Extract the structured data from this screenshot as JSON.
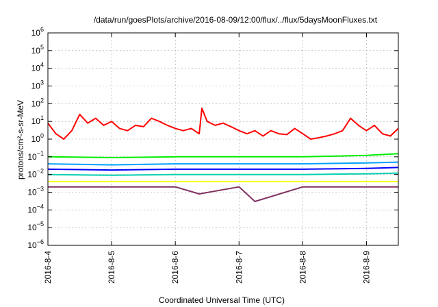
{
  "chart_data": {
    "type": "line",
    "title": "/data/run/goesPlots/archive/2016-08-09/12:00/flux/../flux/5daysMoonFluxes.txt",
    "xlabel": "Coordinated Universal Time (UTC)",
    "ylabel": "protons/cm²-s-sr-MeV",
    "y_scale": "log",
    "ylim": [
      1e-06,
      1000000.0
    ],
    "xlim": [
      "2016-08-04 00:00",
      "2016-08-09 12:00"
    ],
    "x_ticks": [
      "2016-8-4",
      "2016-8-5",
      "2016-8-6",
      "2016-8-7",
      "2016-8-8",
      "2016-8-9"
    ],
    "y_ticks": [
      1e-06,
      1e-05,
      0.0001,
      0.001,
      0.01,
      0.1,
      1.0,
      10.0,
      100.0,
      1000.0,
      10000.0,
      100000.0,
      1000000.0
    ],
    "grid": true,
    "legend": "none",
    "series": [
      {
        "color": "#ff0000",
        "x": [
          "2016-08-04 00:00",
          "2016-08-04 03:00",
          "2016-08-04 06:00",
          "2016-08-04 09:00",
          "2016-08-04 12:00",
          "2016-08-04 15:00",
          "2016-08-04 18:00",
          "2016-08-04 21:00",
          "2016-08-05 00:00",
          "2016-08-05 03:00",
          "2016-08-05 06:00",
          "2016-08-05 09:00",
          "2016-08-05 12:00",
          "2016-08-05 15:00",
          "2016-08-05 18:00",
          "2016-08-05 21:00",
          "2016-08-06 00:00",
          "2016-08-06 03:00",
          "2016-08-06 06:00",
          "2016-08-06 09:00",
          "2016-08-06 10:00",
          "2016-08-06 12:00",
          "2016-08-06 15:00",
          "2016-08-06 18:00",
          "2016-08-06 21:00",
          "2016-08-07 00:00",
          "2016-08-07 03:00",
          "2016-08-07 06:00",
          "2016-08-07 09:00",
          "2016-08-07 12:00",
          "2016-08-07 15:00",
          "2016-08-07 18:00",
          "2016-08-07 21:00",
          "2016-08-08 00:00",
          "2016-08-08 03:00",
          "2016-08-08 06:00",
          "2016-08-08 09:00",
          "2016-08-08 12:00",
          "2016-08-08 15:00",
          "2016-08-08 18:00",
          "2016-08-08 21:00",
          "2016-08-09 00:00",
          "2016-08-09 03:00",
          "2016-08-09 06:00",
          "2016-08-09 09:00",
          "2016-08-09 12:00"
        ],
        "y": [
          8,
          2,
          1,
          3,
          25,
          8,
          15,
          6,
          10,
          4,
          3,
          6,
          5,
          15,
          10,
          6,
          4,
          3,
          4,
          2,
          55,
          10,
          6,
          8,
          5,
          3,
          2,
          3,
          1.5,
          3,
          2,
          1.8,
          4,
          2,
          1,
          1.2,
          1.5,
          2,
          3,
          15,
          6,
          3,
          6,
          2,
          1.5,
          4
        ]
      },
      {
        "color": "#00ee00",
        "x": [
          "2016-08-04 00:00",
          "2016-08-05 00:00",
          "2016-08-06 00:00",
          "2016-08-07 00:00",
          "2016-08-08 00:00",
          "2016-08-09 00:00",
          "2016-08-09 12:00"
        ],
        "y": [
          0.1,
          0.09,
          0.1,
          0.1,
          0.1,
          0.12,
          0.15
        ]
      },
      {
        "color": "#00a0ff",
        "x": [
          "2016-08-04 00:00",
          "2016-08-05 00:00",
          "2016-08-06 00:00",
          "2016-08-07 00:00",
          "2016-08-08 00:00",
          "2016-08-09 00:00",
          "2016-08-09 12:00"
        ],
        "y": [
          0.04,
          0.035,
          0.04,
          0.04,
          0.04,
          0.045,
          0.05
        ]
      },
      {
        "color": "#0000ff",
        "x": [
          "2016-08-04 00:00",
          "2016-08-05 00:00",
          "2016-08-06 00:00",
          "2016-08-07 00:00",
          "2016-08-08 00:00",
          "2016-08-09 00:00",
          "2016-08-09 12:00"
        ],
        "y": [
          0.02,
          0.018,
          0.02,
          0.02,
          0.02,
          0.022,
          0.025
        ]
      },
      {
        "color": "#00d0b0",
        "x": [
          "2016-08-04 00:00",
          "2016-08-05 00:00",
          "2016-08-06 00:00",
          "2016-08-07 00:00",
          "2016-08-08 00:00",
          "2016-08-09 00:00",
          "2016-08-09 12:00"
        ],
        "y": [
          0.01,
          0.009,
          0.01,
          0.01,
          0.01,
          0.011,
          0.012
        ]
      },
      {
        "color": "#ffff00",
        "x": [
          "2016-08-04 00:00",
          "2016-08-05 00:00",
          "2016-08-06 00:00",
          "2016-08-07 00:00",
          "2016-08-08 00:00",
          "2016-08-09 00:00",
          "2016-08-09 12:00"
        ],
        "y": [
          0.004,
          0.004,
          0.004,
          0.004,
          0.004,
          0.004,
          0.004
        ]
      },
      {
        "color": "#803060",
        "x": [
          "2016-08-04 00:00",
          "2016-08-05 00:00",
          "2016-08-06 00:00",
          "2016-08-06 09:00",
          "2016-08-07 00:00",
          "2016-08-07 06:00",
          "2016-08-08 00:00",
          "2016-08-09 00:00",
          "2016-08-09 12:00"
        ],
        "y": [
          0.002,
          0.002,
          0.002,
          0.0008,
          0.002,
          0.0003,
          0.002,
          0.002,
          0.002
        ]
      }
    ]
  }
}
